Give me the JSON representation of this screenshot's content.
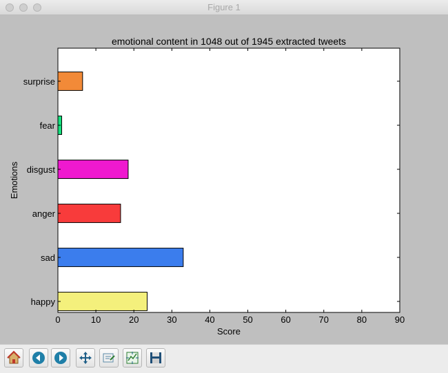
{
  "window": {
    "title": "Figure 1"
  },
  "toolbar": {
    "tools": [
      "home-icon",
      "back-arrow-icon",
      "forward-arrow-icon",
      "pan-icon",
      "zoom-icon",
      "subplots-icon",
      "save-icon"
    ]
  },
  "colors": {
    "figure_bg": "#bfbfbf",
    "bars": [
      "#f4f07c",
      "#3b7ded",
      "#f83b3b",
      "#ef19cf",
      "#14e07d",
      "#f28a38"
    ]
  },
  "chart_data": {
    "type": "bar",
    "orientation": "horizontal",
    "title": "emotional content in 1048 out of 1945 extracted tweets",
    "xlabel": "Score",
    "ylabel": "Emotions",
    "categories": [
      "happy",
      "sad",
      "anger",
      "disgust",
      "fear",
      "surprise"
    ],
    "values": [
      23.5,
      33,
      16.5,
      18.5,
      1,
      6.5
    ],
    "xlim": [
      0,
      90
    ],
    "xticks": [
      "0",
      "10",
      "20",
      "30",
      "40",
      "50",
      "60",
      "70",
      "80",
      "90"
    ],
    "grid": false
  }
}
